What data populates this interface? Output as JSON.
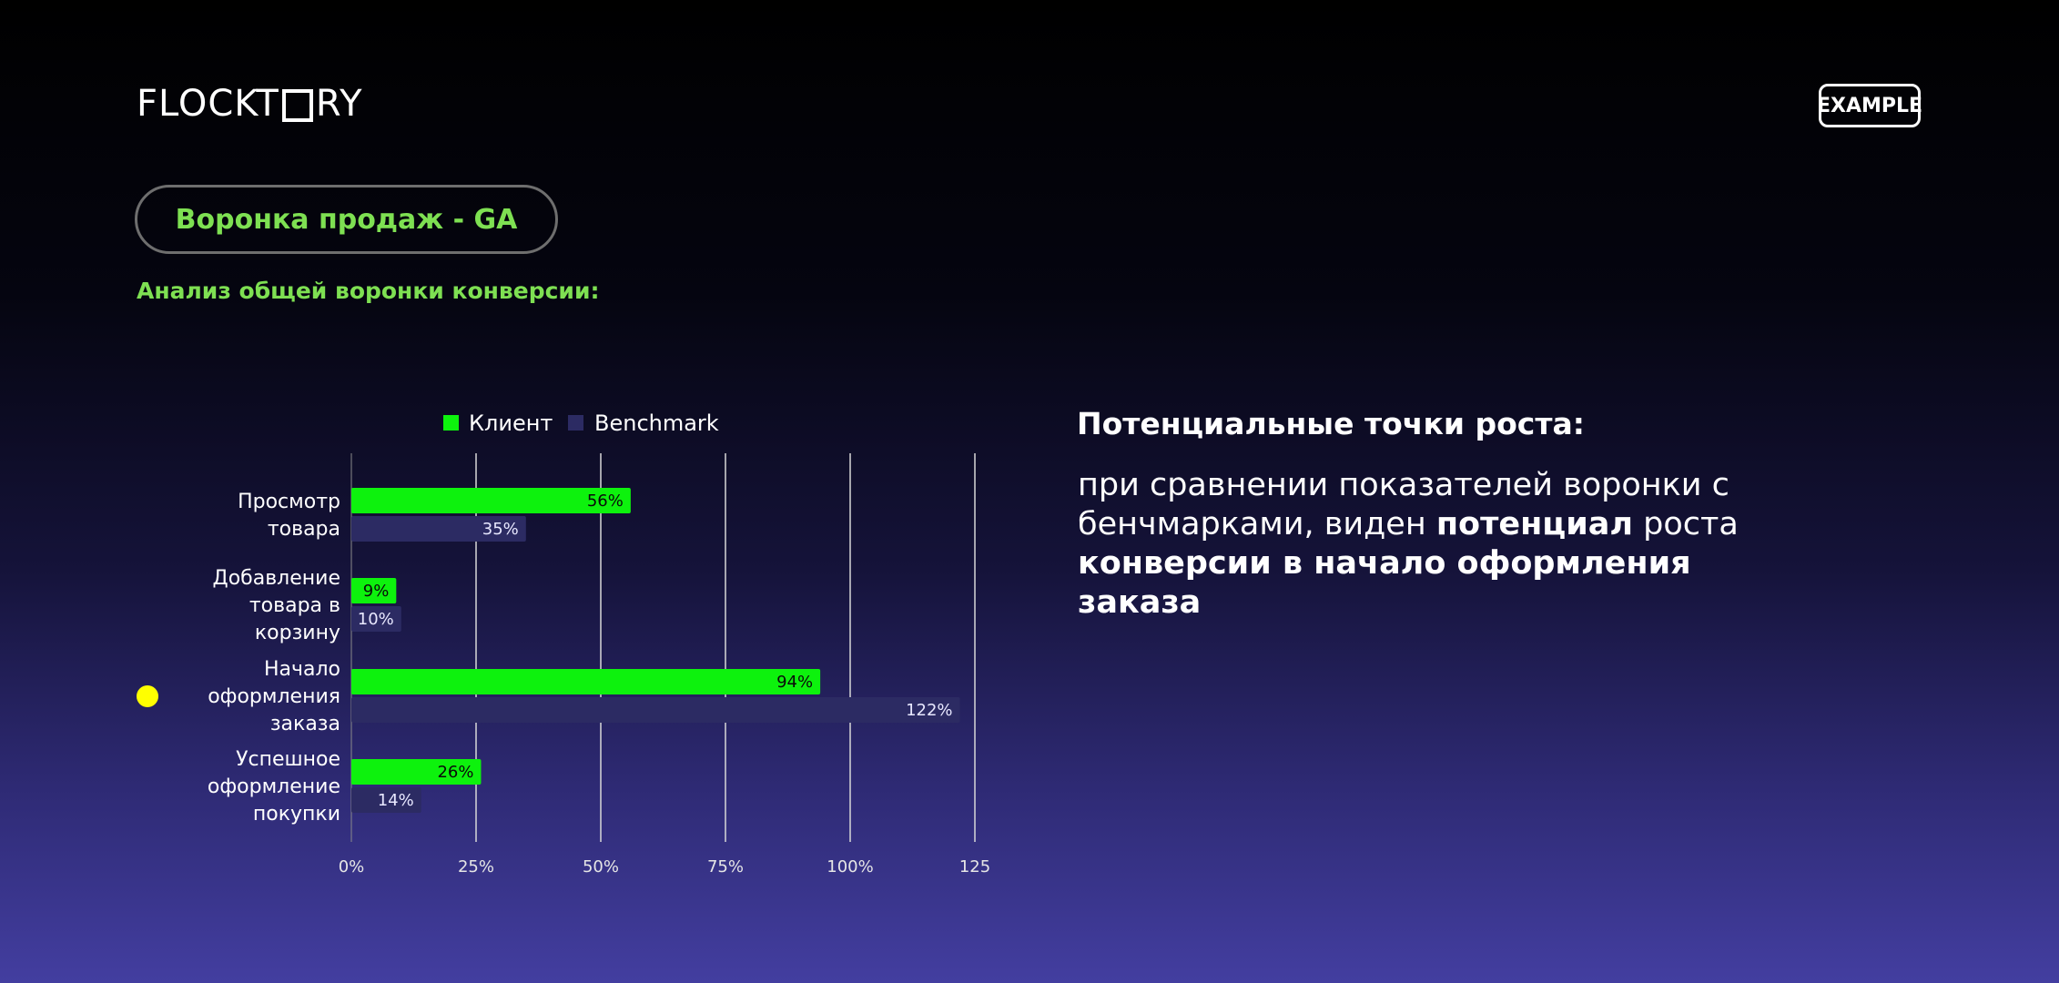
{
  "header": {
    "logo_left": "FLOCKT",
    "logo_right": "RY",
    "badge": "EXAMPLE"
  },
  "pill_title": "Воронка продаж - GA",
  "subtitle": "Анализ общей воронки конверсии:",
  "growth": {
    "title": "Потенциальные точки роста:",
    "t1": "при сравнении показателей воронки с бенчмарками, виден ",
    "b1": "потенциал",
    "t2": " роста ",
    "b2": "конверсии в начало оформления заказа"
  },
  "colors": {
    "client": "#0df20d",
    "benchmark": "#2c2b63",
    "accent_green": "#7ee052",
    "marker": "#ffff00"
  },
  "chart_data": {
    "type": "bar",
    "orientation": "horizontal",
    "categories": [
      [
        "Просмотр",
        "товара"
      ],
      [
        "Добавление",
        "товара в",
        "корзину"
      ],
      [
        "Начало",
        "оформления",
        "заказа"
      ],
      [
        "Успешное",
        "оформление",
        "покупки"
      ]
    ],
    "series": [
      {
        "name": "Клиент",
        "values": [
          56,
          9,
          94,
          26
        ],
        "labels": [
          "56%",
          "9%",
          "94%",
          "26%"
        ]
      },
      {
        "name": "Benchmark",
        "values": [
          35,
          10,
          122,
          14
        ],
        "labels": [
          "35%",
          "10%",
          "122%",
          "14%"
        ]
      }
    ],
    "xlim": [
      0,
      125
    ],
    "xticks": [
      "0%",
      "25%",
      "50%",
      "75%",
      "100%",
      "125"
    ],
    "grid": true,
    "legend": "top"
  }
}
